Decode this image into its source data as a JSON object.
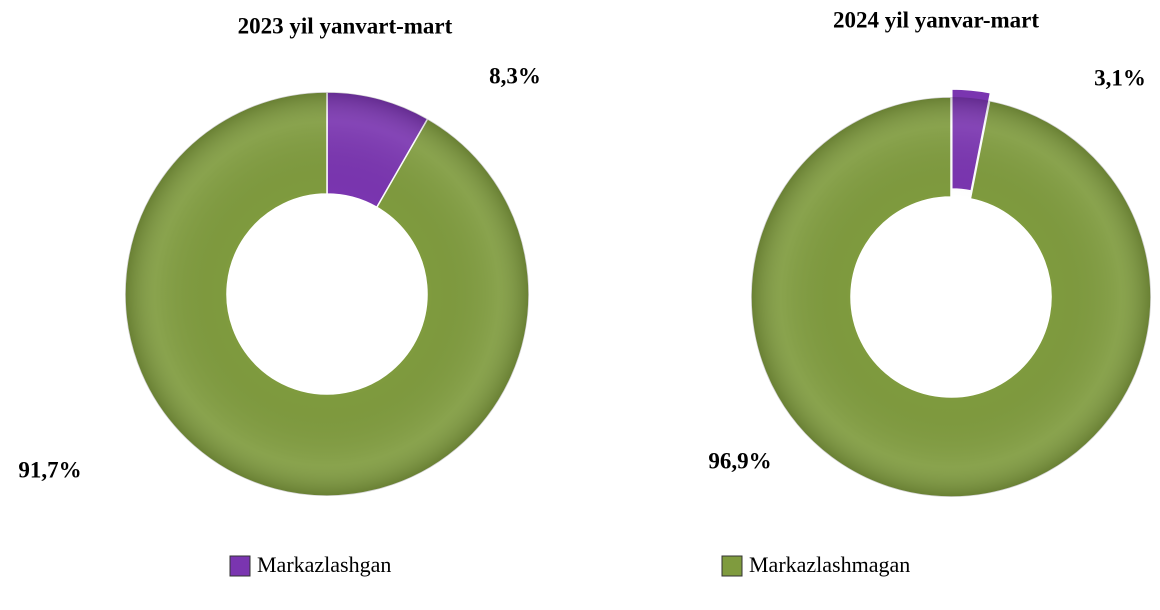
{
  "chart_data": [
    {
      "type": "donut",
      "title": "2023 yil yanvart-mart",
      "categories": [
        "Markazlashgan",
        "Markazlashmagan"
      ],
      "values": [
        8.3,
        91.7
      ],
      "value_labels": [
        "8,3%",
        "91,7%"
      ],
      "colors": [
        "#7a35b0",
        "#7f9b3e"
      ],
      "legend": "bottom"
    },
    {
      "type": "donut",
      "title": "2024 yil yanvar-mart",
      "categories": [
        "Markazlashgan",
        "Markazlashmagan"
      ],
      "values": [
        3.1,
        96.9
      ],
      "value_labels": [
        "3,1%",
        "96,9%"
      ],
      "colors": [
        "#7a35b0",
        "#7f9b3e"
      ],
      "legend": "bottom"
    }
  ]
}
